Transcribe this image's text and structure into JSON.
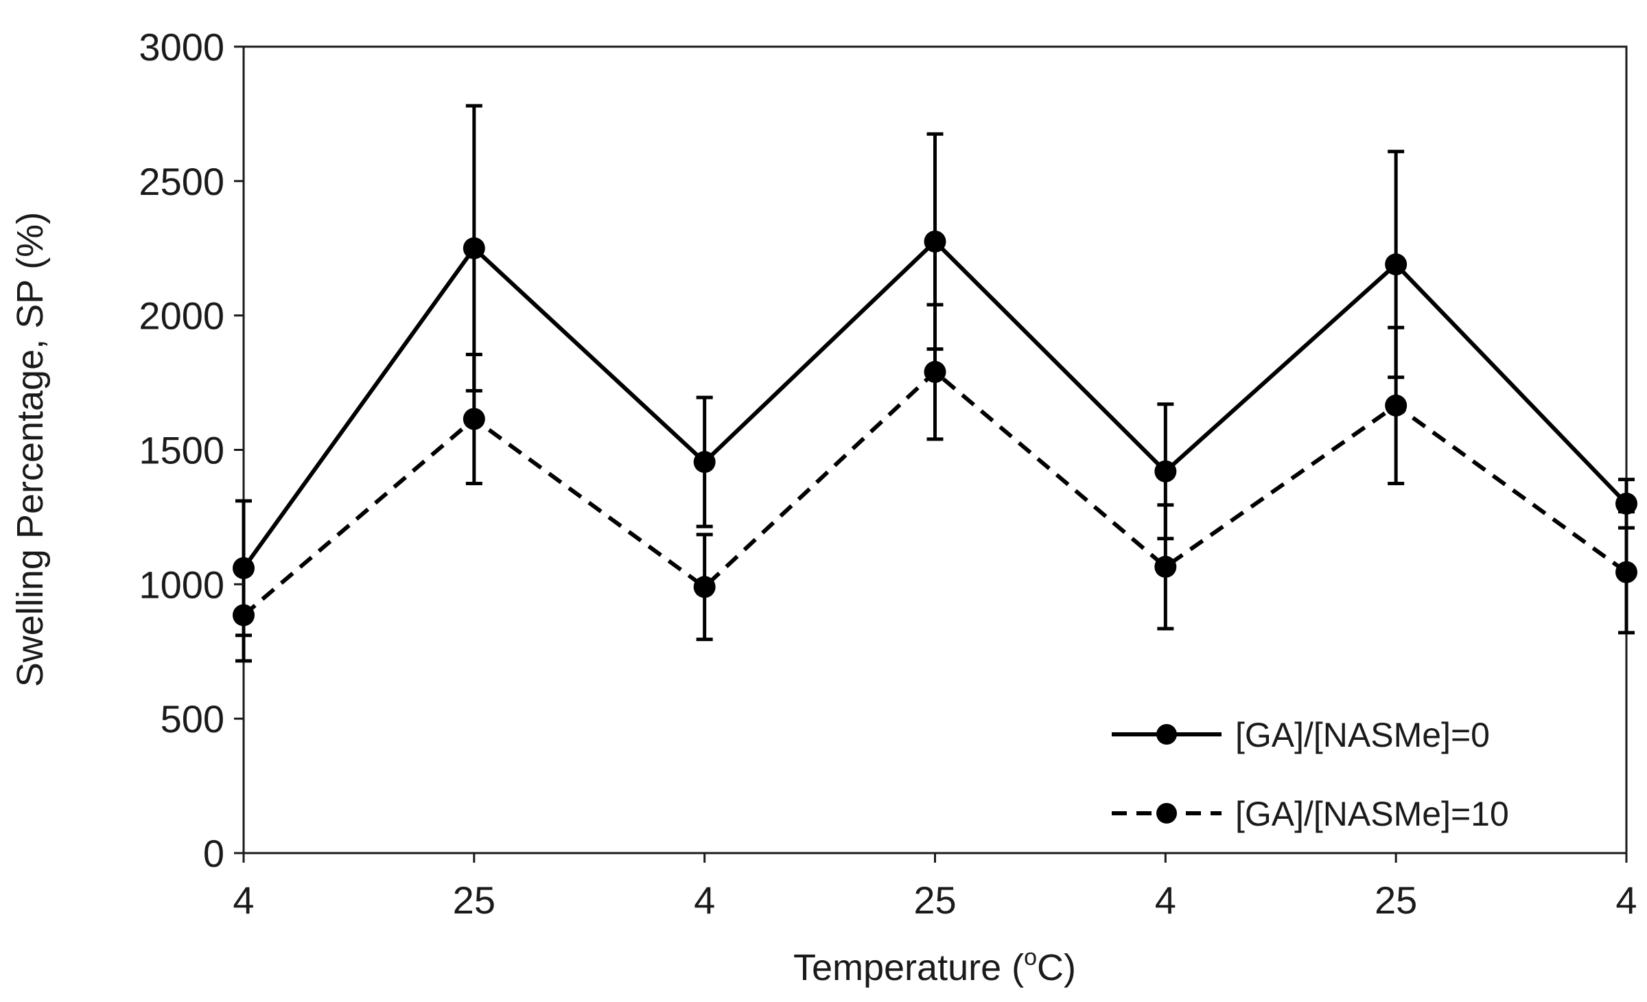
{
  "chart_data": {
    "type": "line",
    "title": "",
    "xlabel": "Temperature (oC)",
    "xlabel_main": "Temperature (",
    "xlabel_sup": "o",
    "xlabel_end": "C)",
    "ylabel": "Swelling Percentage, SP (%)",
    "categories": [
      "4",
      "25",
      "4",
      "25",
      "4",
      "25",
      "4"
    ],
    "ylim": [
      0,
      3000
    ],
    "yticks": [
      0,
      500,
      1000,
      1500,
      2000,
      2500,
      3000
    ],
    "grid": false,
    "legend_position": "bottom-right",
    "series": [
      {
        "name": "[GA]/[NASMe]=0",
        "line_style": "solid",
        "color": "#000000",
        "values": [
          1060,
          2250,
          1455,
          2275,
          1420,
          2190,
          1300
        ],
        "error": [
          250,
          530,
          240,
          400,
          250,
          420,
          90
        ]
      },
      {
        "name": "[GA]/[NASMe]=10",
        "line_style": "dashed",
        "color": "#000000",
        "values": [
          885,
          1615,
          990,
          1790,
          1065,
          1665,
          1045
        ],
        "error": [
          170,
          240,
          195,
          250,
          230,
          290,
          225
        ]
      }
    ]
  }
}
